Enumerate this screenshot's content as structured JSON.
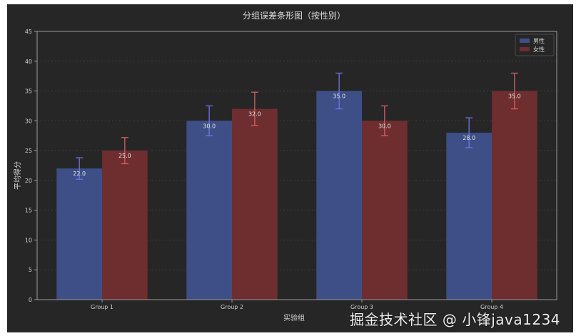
{
  "chart_data": {
    "type": "bar",
    "title": "分组误差条形图（按性别）",
    "xlabel": "实验组",
    "ylabel": "平均得分",
    "categories": [
      "Group 1",
      "Group 2",
      "Group 3",
      "Group 4"
    ],
    "ylim": [
      0,
      45
    ],
    "yticks": [
      0,
      5,
      10,
      15,
      20,
      25,
      30,
      35,
      40,
      45
    ],
    "grid": true,
    "legend_position": "top-right",
    "series": [
      {
        "name": "男性",
        "values": [
          22,
          30,
          35,
          28
        ],
        "errors": [
          1.8,
          2.5,
          3.0,
          2.5
        ],
        "color": "#3d4f86",
        "error_color": "#6f74e6"
      },
      {
        "name": "女性",
        "values": [
          25,
          32,
          30,
          35
        ],
        "errors": [
          2.2,
          2.8,
          2.5,
          3.0
        ],
        "color": "#6e2d2f",
        "error_color": "#d06060"
      }
    ],
    "data_labels": [
      [
        "22.0",
        "30.0",
        "35.0",
        "28.0"
      ],
      [
        "25.0",
        "32.0",
        "30.0",
        "35.0"
      ]
    ]
  },
  "watermark": "掘金技术社区 @ 小锋java1234"
}
